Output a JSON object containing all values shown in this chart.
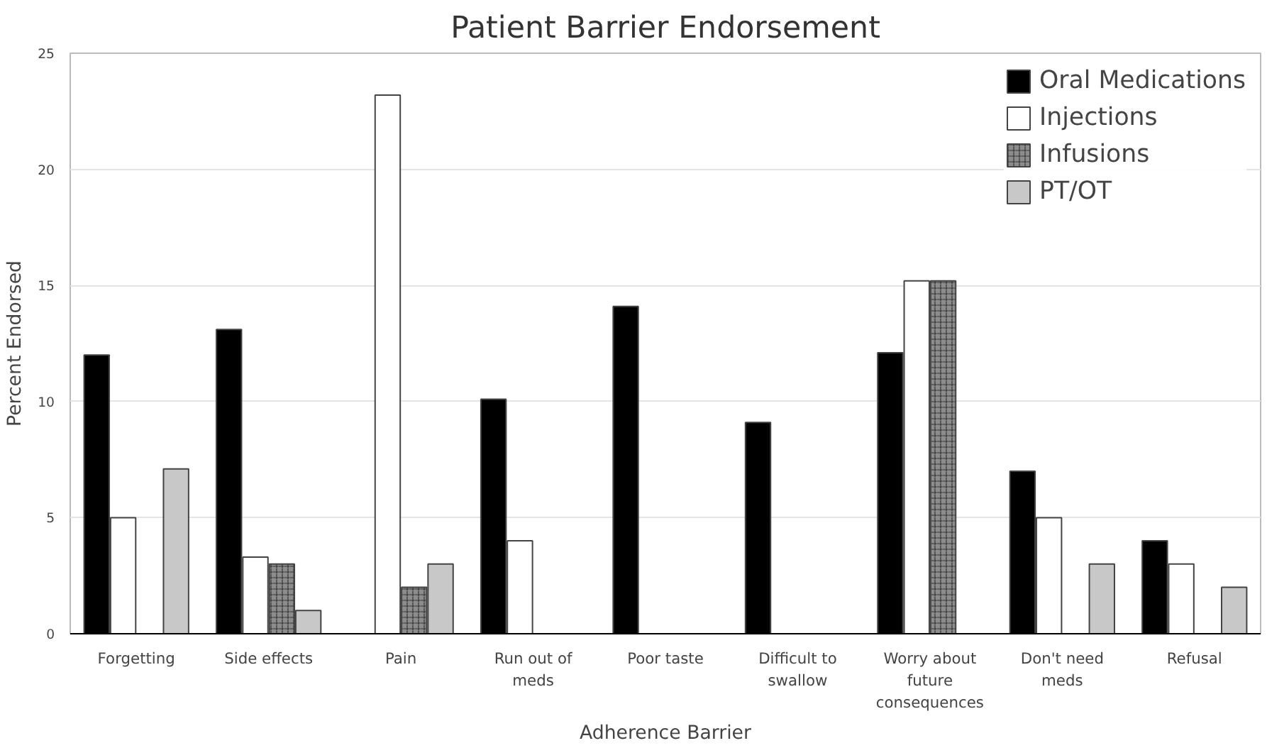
{
  "chart_data": {
    "type": "bar",
    "title": "Patient Barrier Endorsement",
    "xlabel": "Adherence Barrier",
    "ylabel": "Percent Endorsed",
    "categories": [
      "Forgetting",
      "Side effects",
      "Pain",
      "Run out of\nmeds",
      "Poor taste",
      "Difficult to\nswallow",
      "Worry about\nfuture\nconsequences",
      "Don't need\nmeds",
      "Refusal"
    ],
    "series": [
      {
        "name": "Oral Medications",
        "color": "#000000",
        "values": [
          12,
          13.1,
          null,
          10.1,
          14.1,
          9.1,
          12.1,
          7,
          4
        ]
      },
      {
        "name": "Injections",
        "color": "#ffffff",
        "values": [
          5,
          3.3,
          23.2,
          4,
          null,
          null,
          15.2,
          5,
          3
        ]
      },
      {
        "name": "Infusions",
        "color": "#8c8c8c",
        "values": [
          null,
          3,
          2,
          null,
          null,
          null,
          15.2,
          null,
          null
        ]
      },
      {
        "name": "PT/OT",
        "color": "#c8c8c8",
        "values": [
          7.1,
          1,
          3,
          null,
          null,
          null,
          null,
          3,
          2
        ]
      }
    ],
    "ylim": [
      0,
      25
    ],
    "yticks": [
      0,
      5,
      10,
      15,
      20,
      25
    ],
    "grid": "y",
    "legend": "top right"
  }
}
